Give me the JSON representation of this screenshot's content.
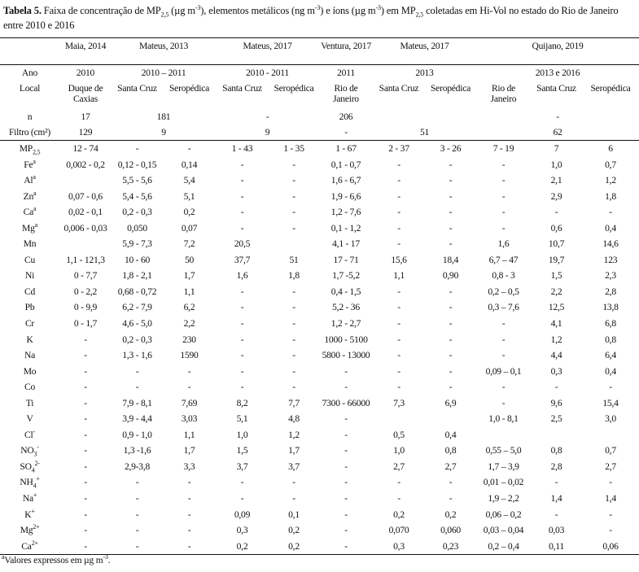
{
  "title": {
    "label": "Tabela 5.",
    "parts": [
      {
        "t": " Faixa de concentração de MP"
      },
      {
        "sub": "2,5"
      },
      {
        "t": " (µg m"
      },
      {
        "sup": "-3"
      },
      {
        "t": "), elementos metálicos (ng m"
      },
      {
        "sup": "-3"
      },
      {
        "t": ") e íons (µg m"
      },
      {
        "sup": "-3"
      },
      {
        "t": ") em MP"
      },
      {
        "sub": "2,5"
      },
      {
        "t": " coletadas em Hi-Vol no estado do Rio de Janeiro entre 2010 e 2016"
      }
    ]
  },
  "header": {
    "studies": [
      {
        "label": "",
        "span": 1
      },
      {
        "label": "Maia, 2014",
        "span": 1
      },
      {
        "label": "Mateus, 2013",
        "span": 2
      },
      {
        "label": "Mateus, 2017",
        "span": 2
      },
      {
        "label": "Ventura, 2017",
        "span": 1
      },
      {
        "label": "Mateus, 2017",
        "span": 2
      },
      {
        "label": "Quijano, 2019",
        "span": 3
      }
    ],
    "ano": [
      {
        "label": "Ano",
        "span": 1
      },
      {
        "label": "2010",
        "span": 1
      },
      {
        "label": "2010 – 2011",
        "span": 2
      },
      {
        "label": "2010 - 2011",
        "span": 2
      },
      {
        "label": "2011",
        "span": 1
      },
      {
        "label": "2013",
        "span": 2
      },
      {
        "label": "2013 e 2016",
        "span": 3
      }
    ],
    "local": [
      "Local",
      "Duque de Caxias",
      "Santa Cruz",
      "Seropédica",
      "Santa Cruz",
      "Seropédica",
      "Rio de Janeiro",
      "Santa Cruz",
      "Seropédica",
      "Rio de Janeiro",
      "Santa Cruz",
      "Seropédica"
    ],
    "n": [
      {
        "label": "n",
        "span": 1
      },
      {
        "label": "17",
        "span": 1
      },
      {
        "label": "181",
        "span": 2
      },
      {
        "label": "-",
        "span": 2
      },
      {
        "label": "206",
        "span": 1
      },
      {
        "label": "",
        "span": 2
      },
      {
        "label": "-",
        "span": 3
      }
    ],
    "filtro": [
      {
        "label": "Filtro (cm²)",
        "span": 1
      },
      {
        "label": "129",
        "span": 1
      },
      {
        "label": "9",
        "span": 2
      },
      {
        "label": "9",
        "span": 2
      },
      {
        "label": "-",
        "span": 1
      },
      {
        "label": "51",
        "span": 2
      },
      {
        "label": "62",
        "span": 3
      }
    ]
  },
  "rows": [
    {
      "base": "MP",
      "sub": "2,5",
      "sup": "",
      "values": [
        "12 - 74",
        "-",
        "-",
        "1 - 43",
        "1 - 35",
        "1 - 67",
        "2 - 37",
        "3 - 26",
        "7 - 19",
        "7",
        "6"
      ]
    },
    {
      "base": "Fe",
      "sub": "",
      "sup": "a",
      "values": [
        "0,002 - 0,2",
        "0,12 - 0,15",
        "0,14",
        "-",
        "-",
        "0,1 - 0,7",
        "-",
        "-",
        "-",
        "1,0",
        "0,7"
      ]
    },
    {
      "base": "Al",
      "sub": "",
      "sup": "a",
      "values": [
        "",
        "5,5 - 5,6",
        "5,4",
        "-",
        "-",
        "1,6 - 6,7",
        "-",
        "-",
        "-",
        "2,1",
        "1,2"
      ]
    },
    {
      "base": "Zn",
      "sub": "",
      "sup": "a",
      "values": [
        "0,07 - 0,6",
        "5,4 - 5,6",
        "5,1",
        "-",
        "-",
        "1,9 - 6,6",
        "-",
        "-",
        "-",
        "2,9",
        "1,8"
      ]
    },
    {
      "base": "Ca",
      "sub": "",
      "sup": "a",
      "values": [
        "0,02 - 0,1",
        "0,2 - 0,3",
        "0,2",
        "-",
        "-",
        "1,2 - 7,6",
        "-",
        "-",
        "-",
        "-",
        "-"
      ]
    },
    {
      "base": "Mg",
      "sub": "",
      "sup": "a",
      "values": [
        "0,006 - 0,03",
        "0,050",
        "0,07",
        "-",
        "-",
        "0,1 - 1,2",
        "-",
        "-",
        "-",
        "0,6",
        "0,4"
      ]
    },
    {
      "base": "Mn",
      "sub": "",
      "sup": "",
      "values": [
        "",
        "5,9 - 7,3",
        "7,2",
        "20,5",
        "",
        "4,1 - 17",
        "-",
        "-",
        "1,6",
        "10,7",
        "14,6"
      ]
    },
    {
      "base": "Cu",
      "sub": "",
      "sup": "",
      "values": [
        "1,1 - 121,3",
        "10 - 60",
        "50",
        "37,7",
        "51",
        "17 - 71",
        "15,6",
        "18,4",
        "6,7 – 47",
        "19,7",
        "123"
      ]
    },
    {
      "base": "Ni",
      "sub": "",
      "sup": "",
      "values": [
        "0 - 7,7",
        "1,8 - 2,1",
        "1,7",
        "1,6",
        "1,8",
        "1,7 -5,2",
        "1,1",
        "0,90",
        "0,8 - 3",
        "1,5",
        "2,3"
      ]
    },
    {
      "base": "Cd",
      "sub": "",
      "sup": "",
      "values": [
        "0 - 2,2",
        "0,68 - 0,72",
        "1,1",
        "-",
        "-",
        "0,4 - 1,5",
        "-",
        "-",
        "0,2 – 0,5",
        "2,2",
        "2,8"
      ]
    },
    {
      "base": "Pb",
      "sub": "",
      "sup": "",
      "values": [
        "0 - 9,9",
        "6,2 - 7,9",
        "6,2",
        "-",
        "-",
        "5,2 - 36",
        "-",
        "-",
        "0,3 – 7,6",
        "12,5",
        "13,8"
      ]
    },
    {
      "base": "Cr",
      "sub": "",
      "sup": "",
      "values": [
        "0 - 1,7",
        "4,6 - 5,0",
        "2,2",
        "-",
        "-",
        "1,2 - 2,7",
        "-",
        "-",
        "-",
        "4,1",
        "6,8"
      ]
    },
    {
      "base": "K",
      "sub": "",
      "sup": "",
      "values": [
        "-",
        "0,2 - 0,3",
        "230",
        "-",
        "-",
        "1000 - 5100",
        "-",
        "-",
        "-",
        "1,2",
        "0,8"
      ]
    },
    {
      "base": "Na",
      "sub": "",
      "sup": "",
      "values": [
        "-",
        "1,3 - 1,6",
        "1590",
        "-",
        "-",
        "5800 - 13000",
        "-",
        "-",
        "-",
        "4,4",
        "6,4"
      ]
    },
    {
      "base": "Mo",
      "sub": "",
      "sup": "",
      "values": [
        "-",
        "-",
        "-",
        "-",
        "-",
        "-",
        "-",
        "-",
        "0,09 – 0,1",
        "0,3",
        "0,4"
      ]
    },
    {
      "base": "Co",
      "sub": "",
      "sup": "",
      "values": [
        "-",
        "-",
        "-",
        "-",
        "-",
        "-",
        "-",
        "-",
        "-",
        "-",
        "-"
      ]
    },
    {
      "base": "Ti",
      "sub": "",
      "sup": "",
      "values": [
        "-",
        "7,9 - 8,1",
        "7,69",
        "8,2",
        "7,7",
        "7300 - 66000",
        "7,3",
        "6,9",
        "-",
        "9,6",
        "15,4"
      ]
    },
    {
      "base": "V",
      "sub": "",
      "sup": "",
      "values": [
        "-",
        "3,9 - 4,4",
        "3,03",
        "5,1",
        "4,8",
        "-",
        "",
        "",
        "1,0 - 8,1",
        "2,5",
        "3,0"
      ]
    },
    {
      "base": "Cl",
      "sub": "",
      "sup": "-",
      "values": [
        "-",
        "0,9 - 1,0",
        "1,1",
        "1,0",
        "1,2",
        "-",
        "0,5",
        "0,4",
        "",
        "",
        ""
      ]
    },
    {
      "base": "NO",
      "sub": "3",
      "sup": "-",
      "values": [
        "-",
        "1,3 -1,6",
        "1,7",
        "1,5",
        "1,7",
        "-",
        "1,0",
        "0,8",
        "0,55 – 5,0",
        "0,8",
        "0,7"
      ]
    },
    {
      "base": "SO",
      "sub": "4",
      "sup": "2-",
      "values": [
        "-",
        "2,9-3,8",
        "3,3",
        "3,7",
        "3,7",
        "-",
        "2,7",
        "2,7",
        "1,7 – 3,9",
        "2,8",
        "2,7"
      ]
    },
    {
      "base": "NH",
      "sub": "4",
      "sup": "+",
      "values": [
        "-",
        "-",
        "-",
        "-",
        "-",
        "-",
        "-",
        "-",
        "0,01 – 0,02",
        "-",
        "-"
      ]
    },
    {
      "base": "Na",
      "sub": "",
      "sup": "+",
      "values": [
        "-",
        "-",
        "-",
        "-",
        "-",
        "-",
        "-",
        "-",
        "1,9 – 2,2",
        "1,4",
        "1,4"
      ]
    },
    {
      "base": "K",
      "sub": "",
      "sup": "+",
      "values": [
        "-",
        "-",
        "-",
        "0,09",
        "0,1",
        "-",
        "0,2",
        "0,2",
        "0,06 – 0,2",
        "-",
        "-"
      ]
    },
    {
      "base": "Mg",
      "sub": "",
      "sup": "2+",
      "values": [
        "-",
        "-",
        "-",
        "0,3",
        "0,2",
        "-",
        "0,070",
        "0,060",
        "0,03 – 0,04",
        "0,03",
        "-"
      ]
    },
    {
      "base": "Ca",
      "sub": "",
      "sup": "2+",
      "values": [
        "-",
        "-",
        "-",
        "0,2",
        "0,2",
        "-",
        "0,3",
        "0,23",
        "0,2 – 0,4",
        "0,11",
        "0,06"
      ]
    }
  ],
  "footnote": {
    "mark": "a",
    "text": "Valores expressos em µg m",
    "sup": "-3",
    "end": "."
  }
}
